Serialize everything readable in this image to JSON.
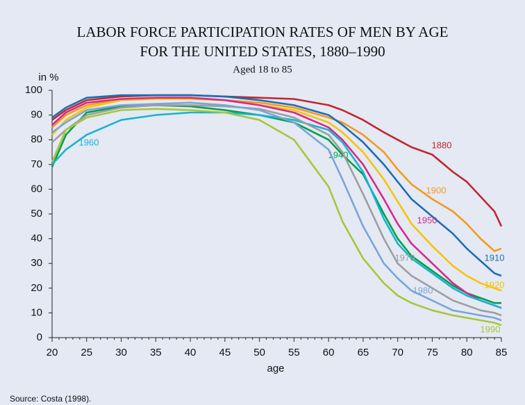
{
  "chart_data": {
    "type": "line",
    "title": "LABOR FORCE PARTICIPATION RATES OF MEN BY AGE",
    "title_line2": "FOR THE UNITED STATES, 1880–1990",
    "subtitle": "Aged 18 to 85",
    "y_label": "in %",
    "x_label": "age",
    "source": "Source: Costa (1998).",
    "x": [
      20,
      22,
      25,
      30,
      35,
      40,
      45,
      50,
      55,
      60,
      62,
      65,
      68,
      70,
      72,
      75,
      78,
      80,
      82,
      84,
      85
    ],
    "series": [
      {
        "name": "1880",
        "color": "#c1272d",
        "values": [
          88,
          92,
          96,
          97.5,
          98,
          98,
          97.5,
          97,
          96.5,
          94,
          92,
          88,
          83,
          80,
          77,
          74,
          67,
          63,
          57,
          51,
          45
        ]
      },
      {
        "name": "1900",
        "color": "#f39a1e",
        "values": [
          85,
          90,
          94,
          96.5,
          97,
          97,
          96,
          95,
          93,
          89,
          87,
          82,
          75,
          68,
          62,
          56,
          51,
          46,
          40,
          35,
          36
        ]
      },
      {
        "name": "1910",
        "color": "#1f6db3",
        "values": [
          89,
          93,
          97,
          98,
          98,
          98,
          97.5,
          96,
          94,
          90,
          86,
          79,
          70,
          63,
          56,
          49,
          42,
          36,
          31,
          26,
          25
        ]
      },
      {
        "name": "1920",
        "color": "#f6c400",
        "values": [
          82,
          88,
          93,
          96,
          96.5,
          96.5,
          96,
          94,
          92,
          87,
          83,
          75,
          64,
          55,
          46,
          37,
          29,
          25,
          22,
          20,
          19
        ]
      },
      {
        "name": "1940",
        "color": "#00a04a",
        "values": [
          69,
          82,
          91,
          93.5,
          94,
          93.5,
          92,
          90,
          87,
          80,
          74,
          66,
          50,
          40,
          33,
          27,
          21,
          18,
          16,
          14,
          14
        ]
      },
      {
        "name": "1950",
        "color": "#d42a8b",
        "values": [
          86,
          91,
          95,
          96.5,
          97,
          97,
          96,
          94,
          91,
          85,
          80,
          70,
          56,
          46,
          38,
          30,
          22,
          18,
          15,
          13,
          12
        ]
      },
      {
        "name": "1960",
        "color": "#19b4cf",
        "values": [
          70,
          76,
          82,
          88,
          90,
          91,
          91,
          90,
          88,
          84,
          79,
          67,
          48,
          38,
          32,
          26,
          20,
          17,
          15,
          13,
          12
        ]
      },
      {
        "name": "1970",
        "color": "#9e9e9e",
        "values": [
          79,
          84,
          90,
          93,
          94,
          94,
          93.5,
          92.5,
          89,
          82,
          75,
          58,
          40,
          30,
          25,
          20,
          15,
          13,
          11,
          10,
          9
        ]
      },
      {
        "name": "1980",
        "color": "#7ba5d6",
        "values": [
          83,
          87,
          92,
          94,
          94.5,
          95,
          94,
          92,
          87,
          76,
          64,
          45,
          30,
          24,
          19,
          15,
          11,
          10,
          9,
          8,
          7
        ]
      },
      {
        "name": "1990",
        "color": "#a5c739",
        "values": [
          71,
          84,
          89,
          92,
          92.5,
          92,
          91,
          88,
          80,
          61,
          47,
          32,
          22,
          17,
          14,
          11,
          9,
          8,
          7,
          6,
          5
        ]
      }
    ],
    "xlim": [
      20,
      85
    ],
    "xticks": [
      20,
      25,
      30,
      35,
      40,
      45,
      50,
      55,
      60,
      65,
      70,
      75,
      80,
      85
    ],
    "ylim": [
      0,
      100
    ],
    "yticks": [
      0,
      10,
      20,
      30,
      40,
      50,
      60,
      70,
      80,
      90,
      100
    ]
  }
}
